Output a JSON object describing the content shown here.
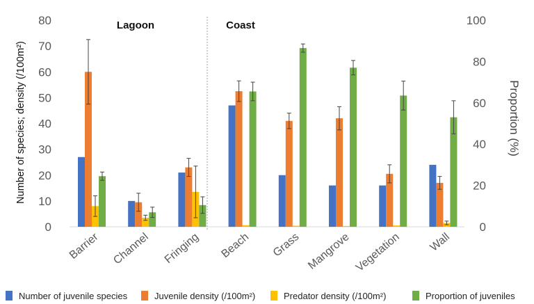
{
  "chart_data": {
    "type": "bar",
    "categories": [
      "Barrier",
      "Channel",
      "Fringing",
      "Beach",
      "Grass",
      "Mangrove",
      "Vegetation",
      "Wall"
    ],
    "groups": [
      {
        "label": "Lagoon",
        "categories": [
          "Barrier",
          "Channel",
          "Fringing"
        ]
      },
      {
        "label": "Coast",
        "categories": [
          "Beach",
          "Grass",
          "Mangrove",
          "Vegetation",
          "Wall"
        ]
      }
    ],
    "series": [
      {
        "name": "Number of juvenile species",
        "color": "#4472C4",
        "axis": "left",
        "values": [
          27,
          10,
          21,
          47,
          20,
          16,
          16,
          24
        ],
        "errors": [
          null,
          null,
          null,
          null,
          null,
          null,
          null,
          null
        ]
      },
      {
        "name": "Juvenile density (/100m²)",
        "color": "#ED7D31",
        "axis": "left",
        "values": [
          60,
          9.5,
          23,
          52.5,
          41,
          42,
          20.5,
          17
        ],
        "errors": [
          12.5,
          3.5,
          3.5,
          4,
          3,
          4.5,
          3.5,
          2.5
        ]
      },
      {
        "name": "Predator density (/100m²)",
        "color": "#FFC000",
        "axis": "left",
        "values": [
          8,
          3.5,
          13.5,
          0.6,
          0.4,
          0.3,
          0.5,
          1.5
        ],
        "errors": [
          4,
          1,
          10,
          0,
          0,
          0,
          0,
          0.7
        ]
      },
      {
        "name": "Proportion of juveniles",
        "color": "#70AD47",
        "axis": "right",
        "values": [
          24.5,
          7,
          10.5,
          65.5,
          86.5,
          77,
          63.5,
          53
        ],
        "errors": [
          2,
          2.5,
          4,
          4.5,
          2,
          3.5,
          7,
          8
        ]
      }
    ],
    "left_axis": {
      "label": "Number of species; density (/100m²)",
      "ylim": [
        0,
        80
      ],
      "ticks": [
        "0",
        "10",
        "20",
        "30",
        "40",
        "50",
        "60",
        "70",
        "80"
      ]
    },
    "right_axis": {
      "label": "Proportion (%)",
      "ylim": [
        0,
        100
      ],
      "ticks": [
        "0",
        "20",
        "40",
        "60",
        "80",
        "100"
      ]
    },
    "grid": false,
    "legend_position": "bottom"
  }
}
